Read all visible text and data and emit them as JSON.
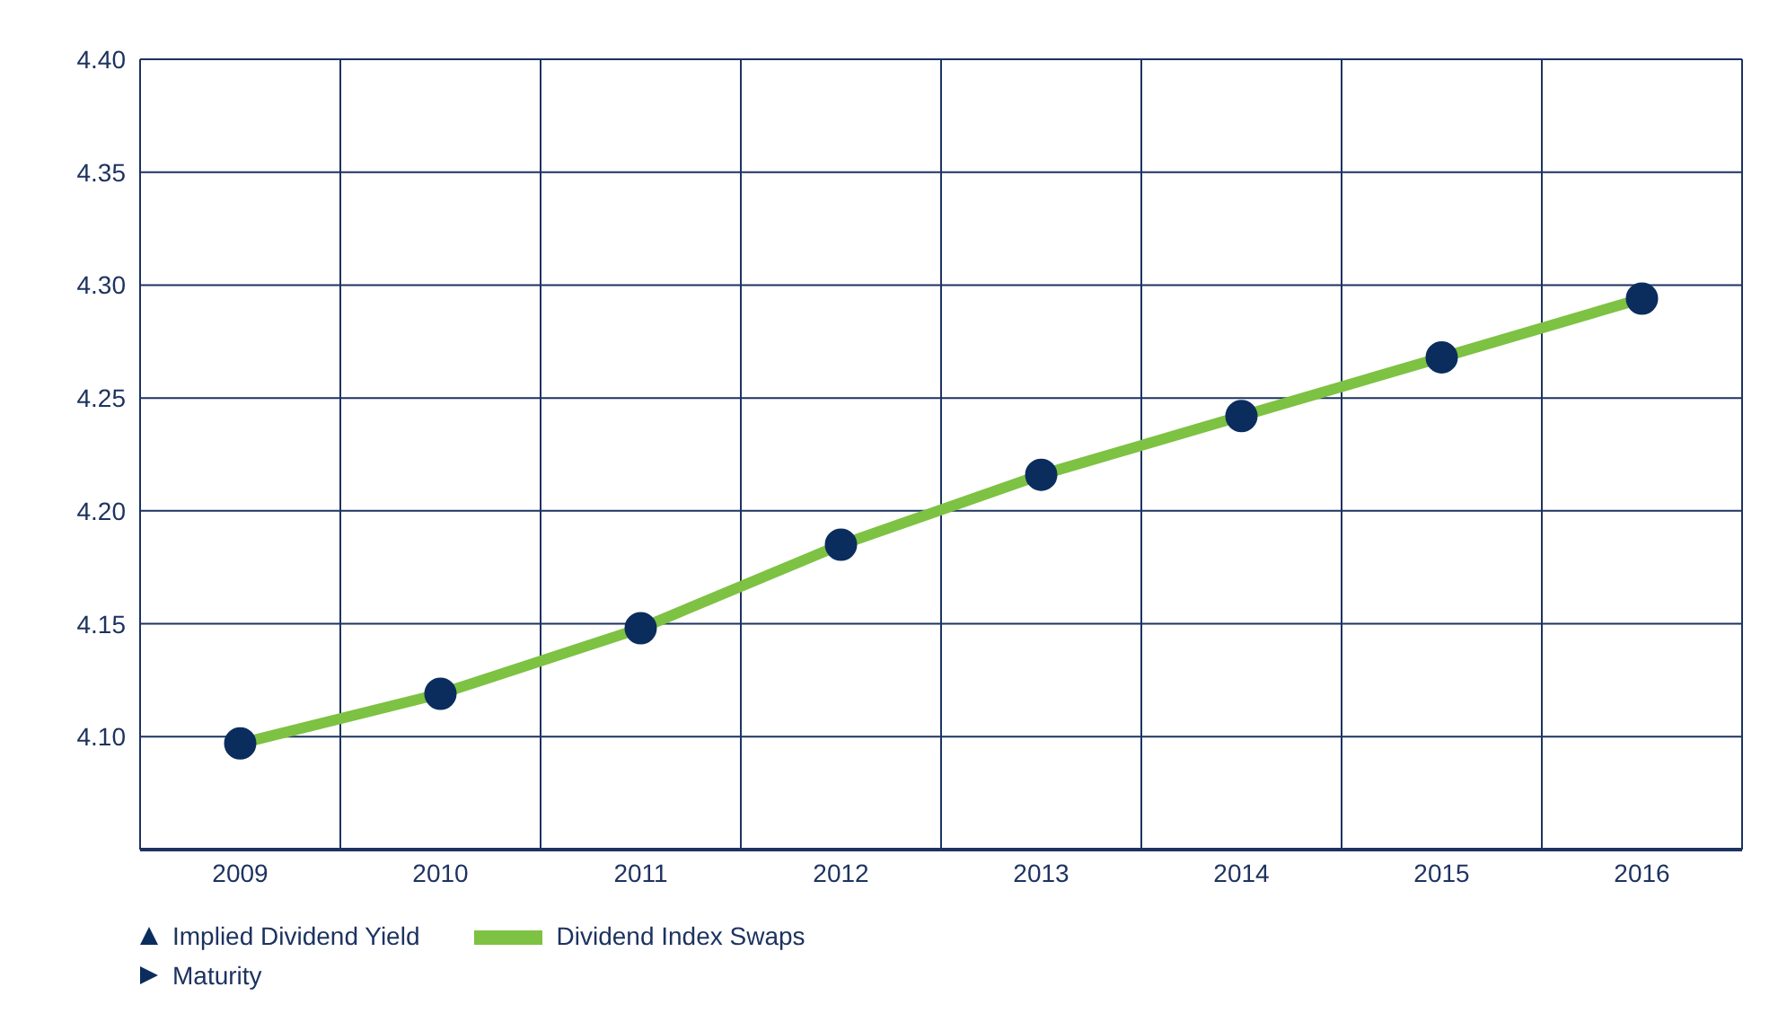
{
  "chart_data": {
    "type": "line",
    "annotations": [
      "Implied Dividend Yield",
      "Maturity"
    ],
    "categories": [
      "2009",
      "2010",
      "2011",
      "2012",
      "2013",
      "2014",
      "2015",
      "2016"
    ],
    "series": [
      {
        "name": "Dividend Index Swaps",
        "color": "#7dc242",
        "values": [
          4.097,
          4.119,
          4.148,
          4.185,
          4.216,
          4.242,
          4.268,
          4.294
        ]
      }
    ],
    "ylim": [
      4.05,
      4.4
    ],
    "yticks": [
      {
        "value": 4.05,
        "label": null
      },
      {
        "value": 4.1,
        "label": "4.10"
      },
      4.15,
      {
        "value": 4.2,
        "label": "4.20"
      },
      4.25,
      {
        "value": 4.3,
        "label": "4.30"
      },
      4.35,
      {
        "value": 4.4,
        "label": "4.40"
      }
    ],
    "grid": true,
    "legend": "bottom",
    "marker": "circle",
    "line_style": "solid"
  }
}
